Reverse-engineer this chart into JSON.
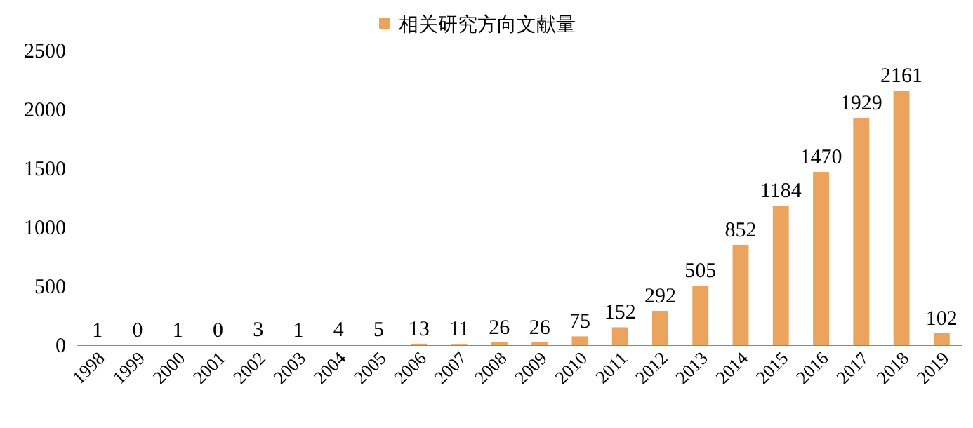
{
  "chart_data": {
    "type": "bar",
    "categories": [
      "1998",
      "1999",
      "2000",
      "2001",
      "2002",
      "2003",
      "2004",
      "2005",
      "2006",
      "2007",
      "2008",
      "2009",
      "2010",
      "2011",
      "2012",
      "2013",
      "2014",
      "2015",
      "2016",
      "2017",
      "2018",
      "2019"
    ],
    "series": [
      {
        "name": "相关研究方向文献量",
        "color": "#eba45e",
        "values": [
          1,
          0,
          1,
          0,
          3,
          1,
          4,
          5,
          13,
          11,
          26,
          26,
          75,
          152,
          292,
          505,
          852,
          1184,
          1470,
          1929,
          2161,
          102
        ]
      }
    ],
    "ylim": [
      0,
      2500
    ],
    "yticks": [
      0,
      500,
      1000,
      1500,
      2000,
      2500
    ],
    "data_labels": true,
    "legend": "top",
    "grid": false
  }
}
